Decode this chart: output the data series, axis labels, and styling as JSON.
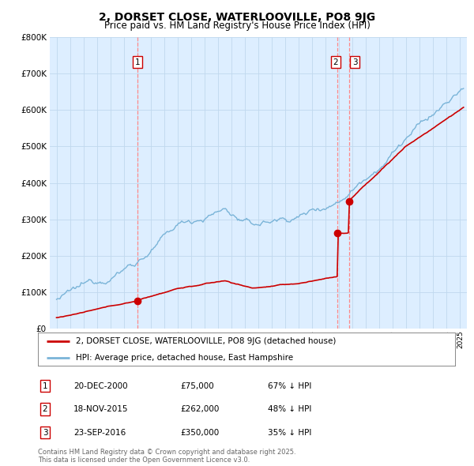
{
  "title": "2, DORSET CLOSE, WATERLOOVILLE, PO8 9JG",
  "subtitle": "Price paid vs. HM Land Registry's House Price Index (HPI)",
  "hpi_color": "#7ab4d8",
  "price_color": "#cc0000",
  "vline_color": "#ff8888",
  "bg_color": "#ffffff",
  "chart_bg_color": "#ddeeff",
  "grid_color": "#c0d8ee",
  "transactions": [
    {
      "label": "1",
      "date_num": 2001.0,
      "price": 75000
    },
    {
      "label": "2",
      "date_num": 2015.9,
      "price": 262000
    },
    {
      "label": "3",
      "date_num": 2016.73,
      "price": 350000
    }
  ],
  "legend_line1": "2, DORSET CLOSE, WATERLOOVILLE, PO8 9JG (detached house)",
  "legend_line2": "HPI: Average price, detached house, East Hampshire",
  "footnote": "Contains HM Land Registry data © Crown copyright and database right 2025.\nThis data is licensed under the Open Government Licence v3.0.",
  "table_rows": [
    [
      "1",
      "20-DEC-2000",
      "£75,000",
      "67% ↓ HPI"
    ],
    [
      "2",
      "18-NOV-2015",
      "£262,000",
      "48% ↓ HPI"
    ],
    [
      "3",
      "23-SEP-2016",
      "£350,000",
      "35% ↓ HPI"
    ]
  ],
  "ylim": [
    0,
    800000
  ],
  "xlim": [
    1994.5,
    2025.5
  ]
}
